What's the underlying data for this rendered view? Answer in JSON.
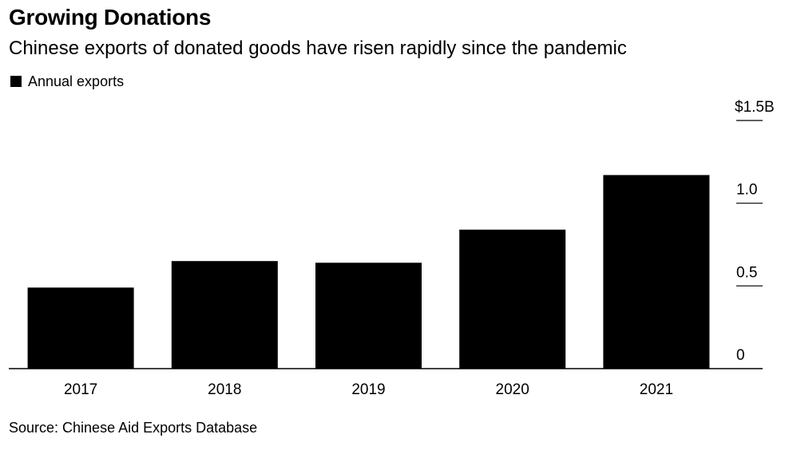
{
  "header": {
    "title": "Growing Donations",
    "subtitle": "Chinese exports of donated goods have risen rapidly since the pandemic"
  },
  "footer": {
    "source": "Source: Chinese Aid Exports Database"
  },
  "chart_data": {
    "type": "bar",
    "title": "Growing Donations",
    "subtitle": "Chinese exports of donated goods have risen rapidly since the pandemic",
    "xlabel": "",
    "ylabel": "",
    "categories": [
      "2017",
      "2018",
      "2019",
      "2020",
      "2021"
    ],
    "series": [
      {
        "name": "Annual exports",
        "values": [
          0.49,
          0.65,
          0.64,
          0.84,
          1.17
        ],
        "color": "#000000"
      }
    ],
    "ylim": [
      0,
      1.5
    ],
    "yticks": [
      0,
      0.5,
      1.0,
      1.5
    ],
    "ytick_labels": [
      "0",
      "0.5",
      "1.0",
      "$1.5B"
    ],
    "y_axis_position": "right",
    "grid": false,
    "legend_position": "top-left"
  }
}
